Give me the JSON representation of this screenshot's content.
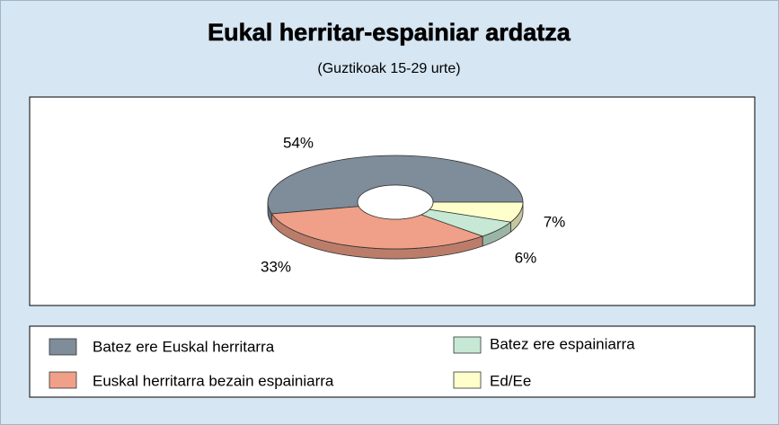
{
  "chart_data": {
    "type": "pie",
    "title": "Eukal herritar-espainiar ardatza",
    "subtitle": "(Guztikoak 15-29 urte)",
    "categories": [
      "Batez ere Euskal herritarra",
      "Euskal herritarra bezain espainiarra",
      "Batez ere espainiarra",
      "Ed/Ee"
    ],
    "values": [
      54,
      33,
      6,
      7
    ],
    "value_labels": [
      "54%",
      "33%",
      "6%",
      "7%"
    ],
    "colors": [
      "#7f8c99",
      "#f0a088",
      "#c6e8d4",
      "#ffffcc"
    ]
  }
}
